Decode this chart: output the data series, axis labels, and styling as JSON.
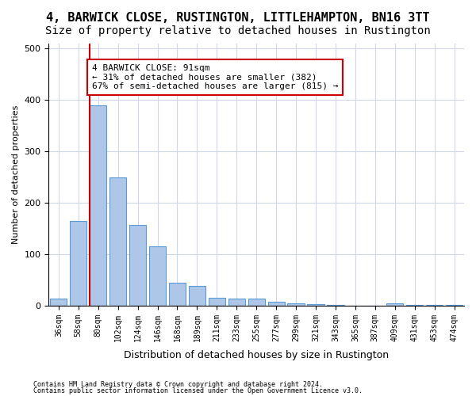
{
  "title": "4, BARWICK CLOSE, RUSTINGTON, LITTLEHAMPTON, BN16 3TT",
  "subtitle": "Size of property relative to detached houses in Rustington",
  "xlabel": "Distribution of detached houses by size in Rustington",
  "ylabel": "Number of detached properties",
  "footer_line1": "Contains HM Land Registry data © Crown copyright and database right 2024.",
  "footer_line2": "Contains public sector information licensed under the Open Government Licence v3.0.",
  "categories": [
    "36sqm",
    "58sqm",
    "80sqm",
    "102sqm",
    "124sqm",
    "146sqm",
    "168sqm",
    "189sqm",
    "211sqm",
    "233sqm",
    "255sqm",
    "277sqm",
    "299sqm",
    "321sqm",
    "343sqm",
    "365sqm",
    "387sqm",
    "409sqm",
    "431sqm",
    "453sqm",
    "474sqm"
  ],
  "values": [
    13,
    165,
    390,
    249,
    157,
    115,
    44,
    39,
    16,
    14,
    13,
    8,
    5,
    3,
    1,
    0,
    0,
    4,
    1,
    1,
    2
  ],
  "bar_color": "#aec6e8",
  "bar_edge_color": "#5b9bd5",
  "property_line_index": 2,
  "annotation_text_line1": "4 BARWICK CLOSE: 91sqm",
  "annotation_text_line2": "← 31% of detached houses are smaller (382)",
  "annotation_text_line3": "67% of semi-detached houses are larger (815) →",
  "annotation_box_color": "#ffffff",
  "annotation_box_edge": "#cc0000",
  "vline_color": "#cc0000",
  "ylim": [
    0,
    510
  ],
  "background_color": "#ffffff",
  "grid_color": "#d0d8e8",
  "title_fontsize": 11,
  "subtitle_fontsize": 10,
  "axis_label_fontsize": 8,
  "tick_fontsize": 7
}
